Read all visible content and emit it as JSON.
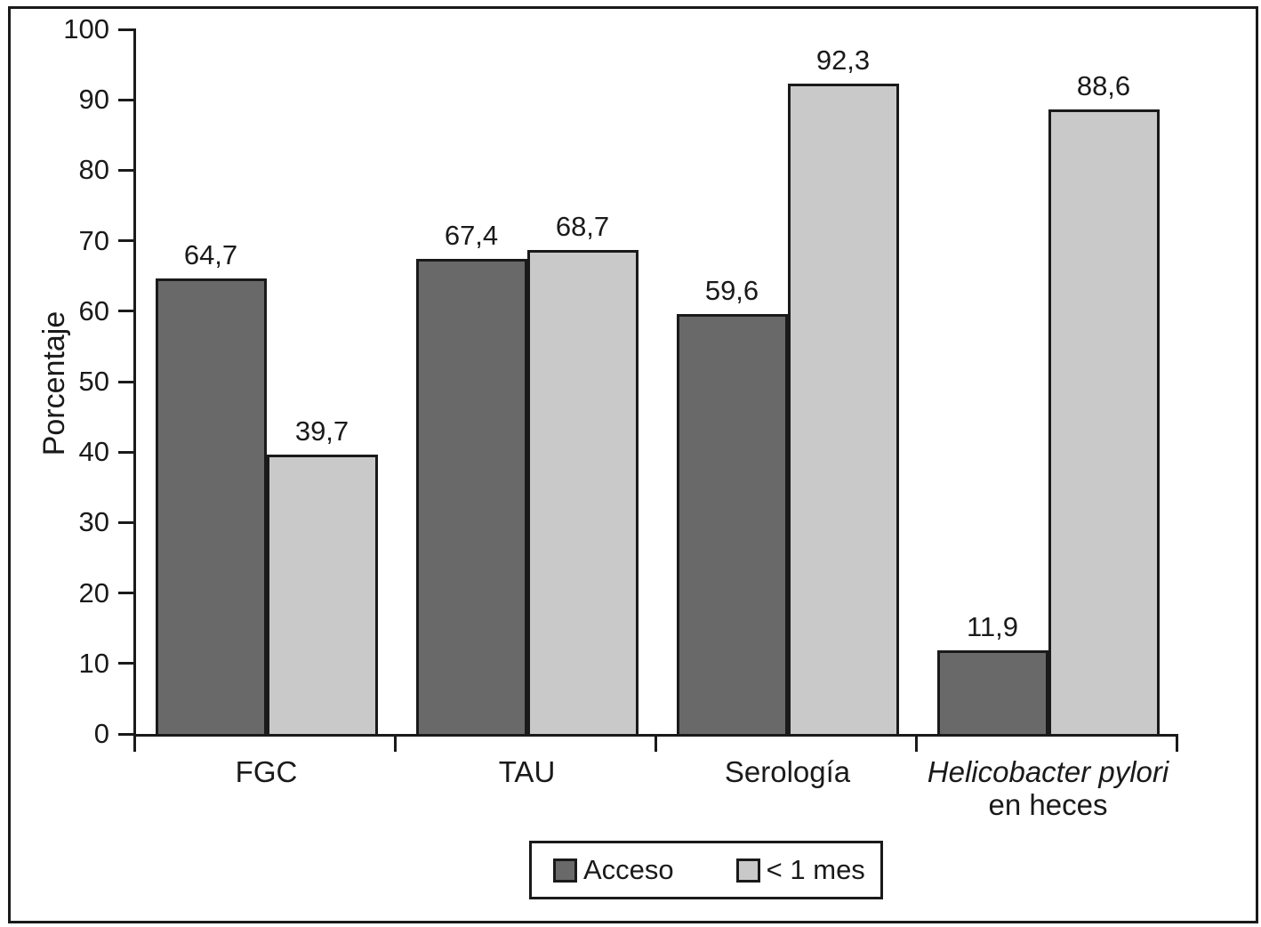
{
  "chart_data": {
    "type": "bar",
    "title": "",
    "ylabel": "Porcentaje",
    "xlabel": "",
    "ylim": [
      0,
      100
    ],
    "ytick_step": 10,
    "ytick_labels": [
      "0",
      "10",
      "20",
      "30",
      "40",
      "50",
      "60",
      "70",
      "80",
      "90",
      "100"
    ],
    "grid": false,
    "legend_position": "bottom-center",
    "decimal_separator": ",",
    "categories": [
      {
        "lines": [
          {
            "text": "FGC",
            "italic": false
          }
        ]
      },
      {
        "lines": [
          {
            "text": "TAU",
            "italic": false
          }
        ]
      },
      {
        "lines": [
          {
            "text": "Serología",
            "italic": false
          }
        ]
      },
      {
        "lines": [
          {
            "text": "Helicobacter pylori",
            "italic": true
          },
          {
            "text": "en heces",
            "italic": false
          }
        ]
      }
    ],
    "series": [
      {
        "name": "Acceso",
        "color": "#696969",
        "values": [
          64.7,
          67.4,
          59.6,
          11.9
        ],
        "labels": [
          "64,7",
          "67,4",
          "59,6",
          "11,9"
        ]
      },
      {
        "name": "< 1 mes",
        "color": "#c9c9c9",
        "values": [
          39.7,
          68.7,
          92.3,
          88.6
        ],
        "labels": [
          "39,7",
          "68,7",
          "92,3",
          "88,6"
        ]
      }
    ],
    "line_color": "#1a1a1a"
  }
}
